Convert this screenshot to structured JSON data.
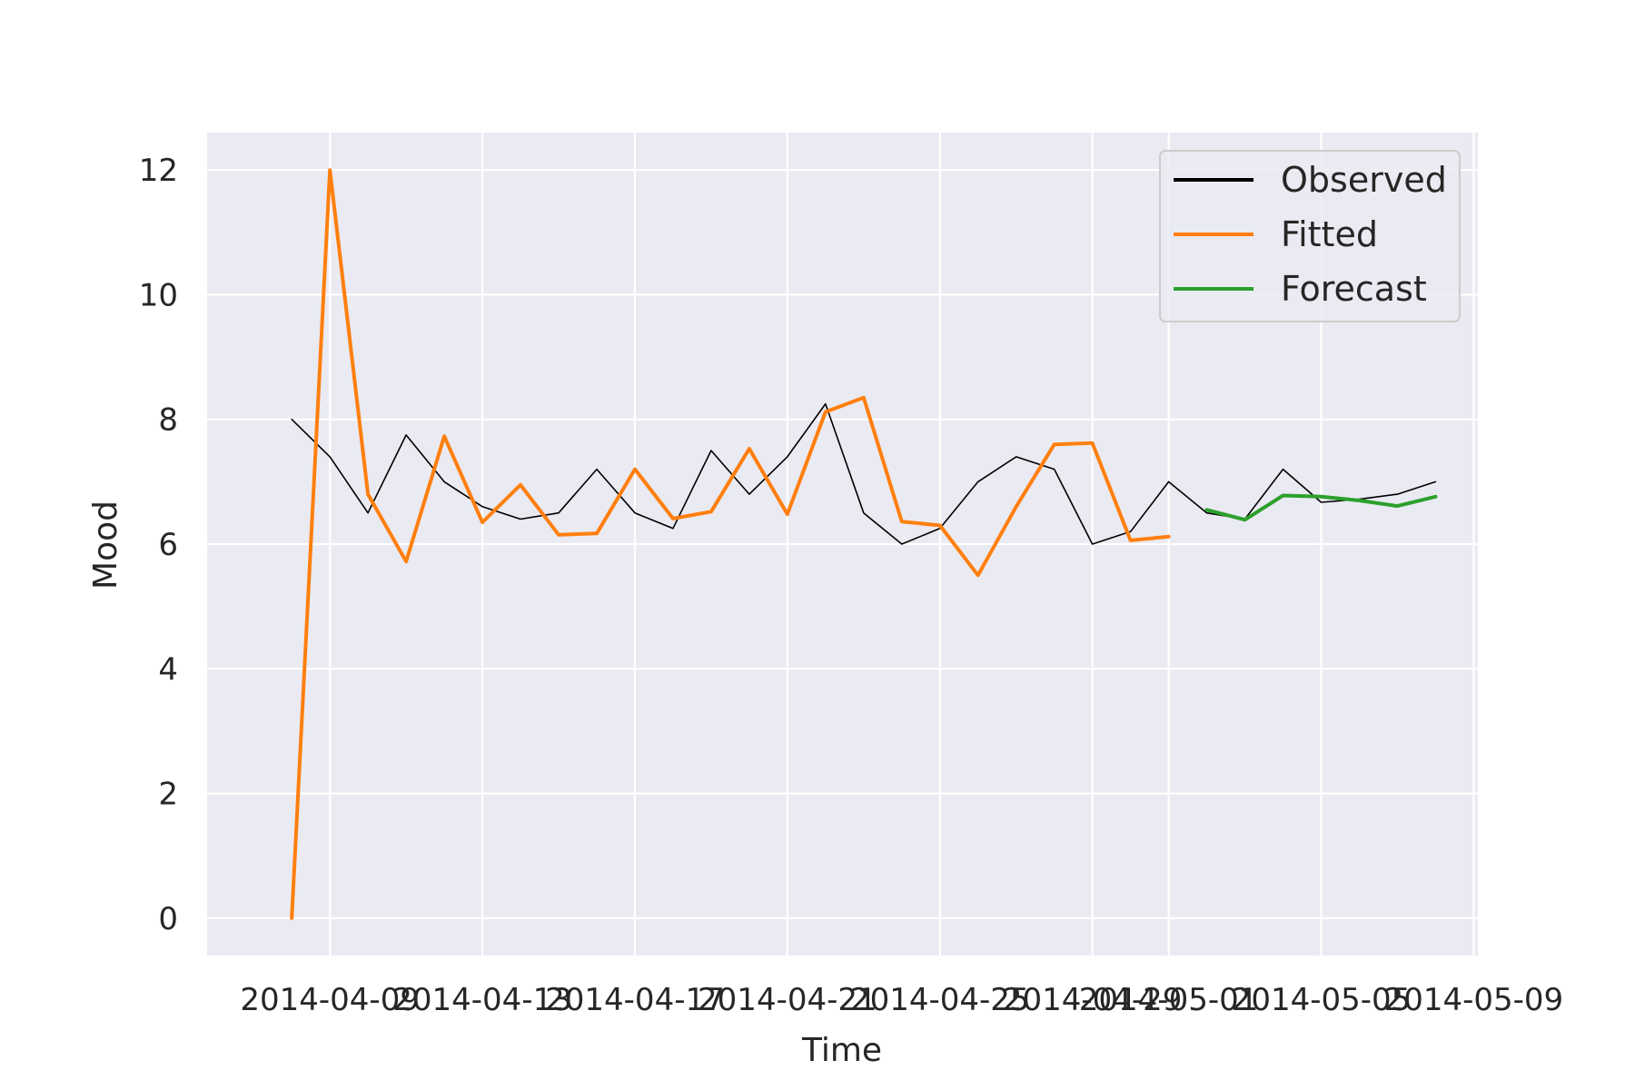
{
  "chart_data": {
    "type": "line",
    "title": "",
    "xlabel": "Time",
    "ylabel": "Mood",
    "x_ticks": [
      "2014-04-09",
      "2014-04-13",
      "2014-04-17",
      "2014-04-21",
      "2014-04-25",
      "2014-04-29",
      "2014-05-01",
      "2014-05-05",
      "2014-05-09"
    ],
    "y_ticks": [
      0,
      2,
      4,
      6,
      8,
      10,
      12
    ],
    "xlim": [
      "2014-04-06",
      "2014-05-09"
    ],
    "ylim": [
      -0.6,
      12.6
    ],
    "grid": true,
    "legend_position": "top-right",
    "colors": {
      "Observed": "#000000",
      "Fitted": "#ff7f0e",
      "Forecast": "#2ca02c",
      "background": "#eaeaf2"
    },
    "series": [
      {
        "name": "Observed",
        "points": [
          [
            "2014-04-08",
            8.0
          ],
          [
            "2014-04-09",
            7.4
          ],
          [
            "2014-04-10",
            6.5
          ],
          [
            "2014-04-11",
            7.75
          ],
          [
            "2014-04-12",
            7.0
          ],
          [
            "2014-04-13",
            6.6
          ],
          [
            "2014-04-14",
            6.4
          ],
          [
            "2014-04-15",
            6.5
          ],
          [
            "2014-04-16",
            7.2
          ],
          [
            "2014-04-17",
            6.5
          ],
          [
            "2014-04-18",
            6.25
          ],
          [
            "2014-04-19",
            7.5
          ],
          [
            "2014-04-20",
            6.8
          ],
          [
            "2014-04-21",
            7.4
          ],
          [
            "2014-04-22",
            8.25
          ],
          [
            "2014-04-23",
            6.5
          ],
          [
            "2014-04-24",
            6.0
          ],
          [
            "2014-04-25",
            6.25
          ],
          [
            "2014-04-26",
            7.0
          ],
          [
            "2014-04-27",
            7.4
          ],
          [
            "2014-04-28",
            7.2
          ],
          [
            "2014-04-29",
            6.0
          ],
          [
            "2014-04-30",
            6.2
          ],
          [
            "2014-05-01",
            7.0
          ],
          [
            "2014-05-02",
            6.5
          ],
          [
            "2014-05-03",
            6.4
          ],
          [
            "2014-05-04",
            7.2
          ],
          [
            "2014-05-05",
            6.67
          ],
          [
            "2014-05-06",
            6.72
          ],
          [
            "2014-05-07",
            6.8
          ],
          [
            "2014-05-08",
            7.0
          ]
        ]
      },
      {
        "name": "Fitted",
        "points": [
          [
            "2014-04-08",
            0.0
          ],
          [
            "2014-04-09",
            12.0
          ],
          [
            "2014-04-10",
            6.8
          ],
          [
            "2014-04-11",
            5.72
          ],
          [
            "2014-04-12",
            7.73
          ],
          [
            "2014-04-13",
            6.35
          ],
          [
            "2014-04-14",
            6.95
          ],
          [
            "2014-04-15",
            6.15
          ],
          [
            "2014-04-16",
            6.17
          ],
          [
            "2014-04-17",
            7.2
          ],
          [
            "2014-04-18",
            6.41
          ],
          [
            "2014-04-19",
            6.52
          ],
          [
            "2014-04-20",
            7.53
          ],
          [
            "2014-04-21",
            6.48
          ],
          [
            "2014-04-22",
            8.12
          ],
          [
            "2014-04-23",
            8.35
          ],
          [
            "2014-04-24",
            6.36
          ],
          [
            "2014-04-25",
            6.3
          ],
          [
            "2014-04-26",
            5.5
          ],
          [
            "2014-04-27",
            6.6
          ],
          [
            "2014-04-28",
            7.6
          ],
          [
            "2014-04-29",
            7.62
          ],
          [
            "2014-04-30",
            6.06
          ],
          [
            "2014-05-01",
            6.12
          ]
        ]
      },
      {
        "name": "Forecast",
        "points": [
          [
            "2014-05-02",
            6.55
          ],
          [
            "2014-05-03",
            6.39
          ],
          [
            "2014-05-04",
            6.78
          ],
          [
            "2014-05-05",
            6.76
          ],
          [
            "2014-05-06",
            6.7
          ],
          [
            "2014-05-07",
            6.61
          ],
          [
            "2014-05-08",
            6.76
          ]
        ]
      }
    ]
  }
}
